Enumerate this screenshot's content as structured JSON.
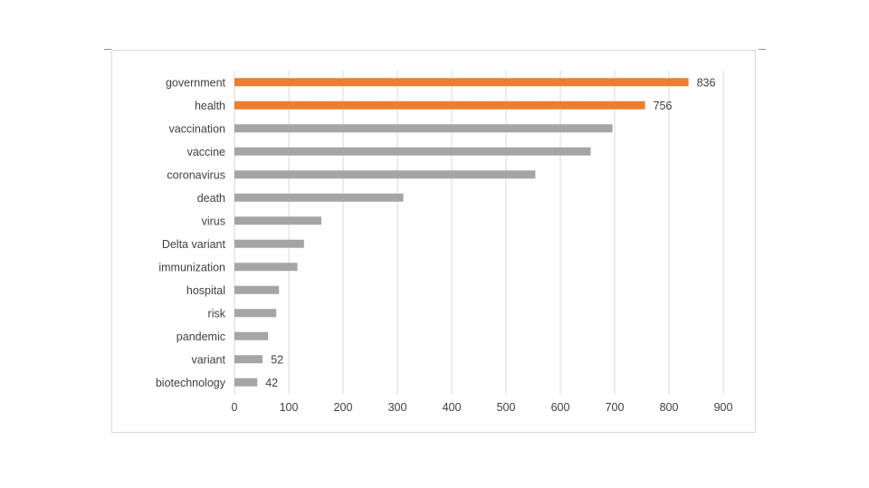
{
  "chart_data": {
    "type": "bar",
    "orientation": "horizontal",
    "categories": [
      "government",
      "health",
      "vaccination",
      "vaccine",
      "coronavirus",
      "death",
      "virus",
      "Delta variant",
      "immunization",
      "hospital",
      "risk",
      "pandemic",
      "variant",
      "biotechnology"
    ],
    "values": [
      836,
      756,
      696,
      656,
      554,
      311,
      160,
      128,
      116,
      82,
      77,
      62,
      52,
      42
    ],
    "value_labels": [
      "836",
      "756",
      "",
      "",
      "",
      "",
      "",
      "",
      "",
      "",
      "",
      "",
      "52",
      "42"
    ],
    "highlight": [
      true,
      true,
      false,
      false,
      false,
      false,
      false,
      false,
      false,
      false,
      false,
      false,
      false,
      false
    ],
    "colors": {
      "highlight": "#ED7D31",
      "default": "#A5A5A5",
      "gridline": "#D9D9D9",
      "text": "#404040"
    },
    "xlim": [
      0,
      900
    ],
    "xticks": [
      "0",
      "100",
      "200",
      "300",
      "400",
      "500",
      "600",
      "700",
      "800",
      "900"
    ],
    "grid": "vertical",
    "legend": "none"
  }
}
